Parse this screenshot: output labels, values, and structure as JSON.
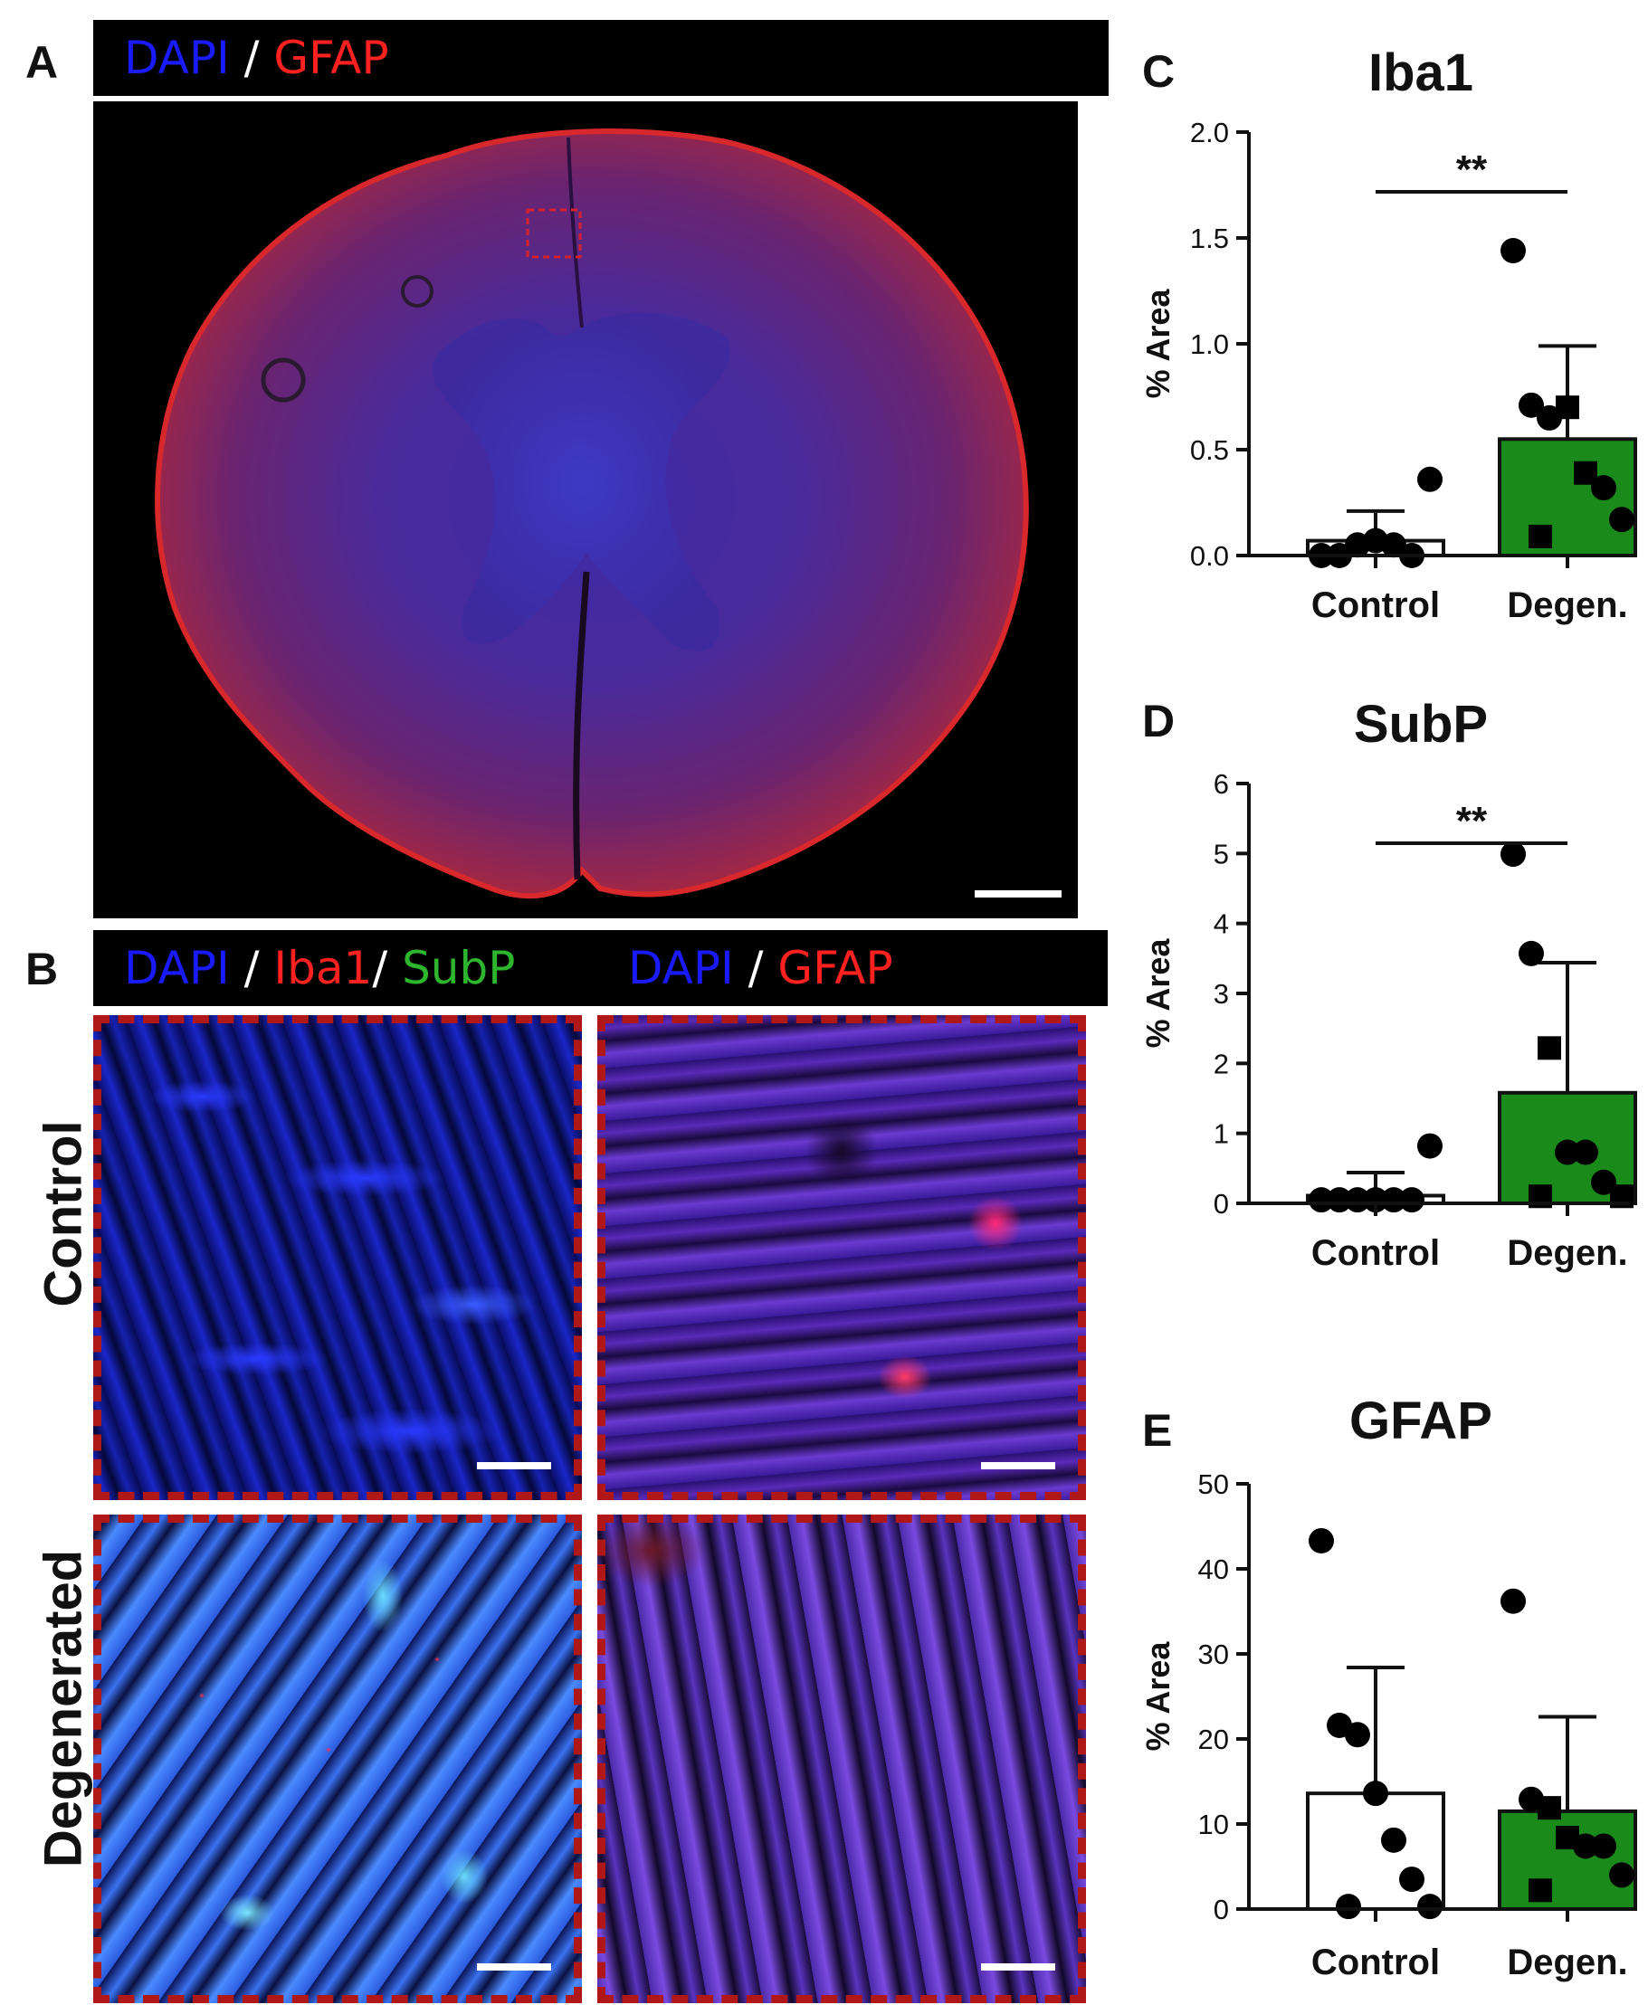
{
  "panels": {
    "A": {
      "letter": "A",
      "channels": [
        {
          "text": "DAPI",
          "color": "#1a1aff"
        },
        {
          "text": " / ",
          "color": "#ffffff"
        },
        {
          "text": "GFAP",
          "color": "#ff2020"
        }
      ]
    },
    "B": {
      "letter": "B",
      "left_channels": [
        {
          "text": "DAPI",
          "color": "#1a1aff"
        },
        {
          "text": " / ",
          "color": "#ffffff"
        },
        {
          "text": "Iba1",
          "color": "#ff2020"
        },
        {
          "text": "/ ",
          "color": "#ffffff"
        },
        {
          "text": "SubP",
          "color": "#2db52d"
        }
      ],
      "right_channels": [
        {
          "text": "DAPI",
          "color": "#1a1aff"
        },
        {
          "text": " / ",
          "color": "#ffffff"
        },
        {
          "text": "GFAP",
          "color": "#ff2020"
        }
      ],
      "row_labels": [
        "Control",
        "Degenerated"
      ]
    },
    "C": {
      "letter": "C"
    },
    "D": {
      "letter": "D"
    },
    "E": {
      "letter": "E"
    }
  },
  "chart_data": [
    {
      "type": "bar",
      "title": "Iba1",
      "ylabel": "% Area",
      "categories": [
        "Control",
        "Degen."
      ],
      "ylim": [
        0,
        2.0
      ],
      "yticks": [
        "0.0",
        "0.5",
        "1.0",
        "1.5",
        "2.0"
      ],
      "values": [
        0.07,
        0.55
      ],
      "errors": [
        0.14,
        0.44
      ],
      "bar_colors": [
        "#ffffff",
        "#1a8a1a"
      ],
      "significance": "**",
      "points": [
        [
          {
            "y": 0.0,
            "shape": "circle"
          },
          {
            "y": 0.0,
            "shape": "circle"
          },
          {
            "y": 0.05,
            "shape": "circle"
          },
          {
            "y": 0.07,
            "shape": "circle"
          },
          {
            "y": 0.05,
            "shape": "circle"
          },
          {
            "y": 0.0,
            "shape": "circle"
          },
          {
            "y": 0.36,
            "shape": "circle"
          }
        ],
        [
          {
            "y": 1.44,
            "shape": "circle"
          },
          {
            "y": 0.71,
            "shape": "circle"
          },
          {
            "y": 0.65,
            "shape": "circle"
          },
          {
            "y": 0.7,
            "shape": "square"
          },
          {
            "y": 0.39,
            "shape": "square"
          },
          {
            "y": 0.32,
            "shape": "circle"
          },
          {
            "y": 0.17,
            "shape": "circle"
          },
          {
            "y": 0.09,
            "shape": "square"
          }
        ]
      ]
    },
    {
      "type": "bar",
      "title": "SubP",
      "ylabel": "% Area",
      "categories": [
        "Control",
        "Degen."
      ],
      "ylim": [
        0,
        6
      ],
      "yticks": [
        "0",
        "1",
        "2",
        "3",
        "4",
        "5",
        "6"
      ],
      "values": [
        0.11,
        1.58
      ],
      "errors": [
        0.33,
        1.86
      ],
      "bar_colors": [
        "#ffffff",
        "#1a8a1a"
      ],
      "significance": "**",
      "points": [
        [
          {
            "y": 0.05,
            "shape": "circle"
          },
          {
            "y": 0.05,
            "shape": "circle"
          },
          {
            "y": 0.05,
            "shape": "circle"
          },
          {
            "y": 0.05,
            "shape": "circle"
          },
          {
            "y": 0.05,
            "shape": "circle"
          },
          {
            "y": 0.05,
            "shape": "circle"
          },
          {
            "y": 0.82,
            "shape": "circle"
          }
        ],
        [
          {
            "y": 4.99,
            "shape": "circle"
          },
          {
            "y": 3.57,
            "shape": "circle"
          },
          {
            "y": 2.22,
            "shape": "square"
          },
          {
            "y": 0.73,
            "shape": "circle"
          },
          {
            "y": 0.73,
            "shape": "circle"
          },
          {
            "y": 0.3,
            "shape": "circle"
          },
          {
            "y": 0.1,
            "shape": "square"
          },
          {
            "y": 0.1,
            "shape": "square"
          }
        ]
      ]
    },
    {
      "type": "bar",
      "title": "GFAP",
      "ylabel": "% Area",
      "categories": [
        "Control",
        "Degen."
      ],
      "ylim": [
        0,
        50
      ],
      "yticks": [
        "0",
        "10",
        "20",
        "30",
        "40",
        "50"
      ],
      "values": [
        13.6,
        11.5
      ],
      "errors": [
        14.8,
        11.1
      ],
      "bar_colors": [
        "#ffffff",
        "#1a8a1a"
      ],
      "significance": "",
      "points": [
        [
          {
            "y": 43.3,
            "shape": "circle"
          },
          {
            "y": 21.6,
            "shape": "circle"
          },
          {
            "y": 20.5,
            "shape": "circle"
          },
          {
            "y": 13.6,
            "shape": "circle"
          },
          {
            "y": 8.1,
            "shape": "circle"
          },
          {
            "y": 3.5,
            "shape": "circle"
          },
          {
            "y": 0.3,
            "shape": "circle"
          },
          {
            "y": 0.3,
            "shape": "circle"
          }
        ],
        [
          {
            "y": 36.2,
            "shape": "circle"
          },
          {
            "y": 12.9,
            "shape": "circle"
          },
          {
            "y": 11.9,
            "shape": "square"
          },
          {
            "y": 8.4,
            "shape": "square"
          },
          {
            "y": 7.4,
            "shape": "circle"
          },
          {
            "y": 7.4,
            "shape": "circle"
          },
          {
            "y": 4.0,
            "shape": "circle"
          },
          {
            "y": 2.2,
            "shape": "square"
          }
        ]
      ]
    }
  ]
}
